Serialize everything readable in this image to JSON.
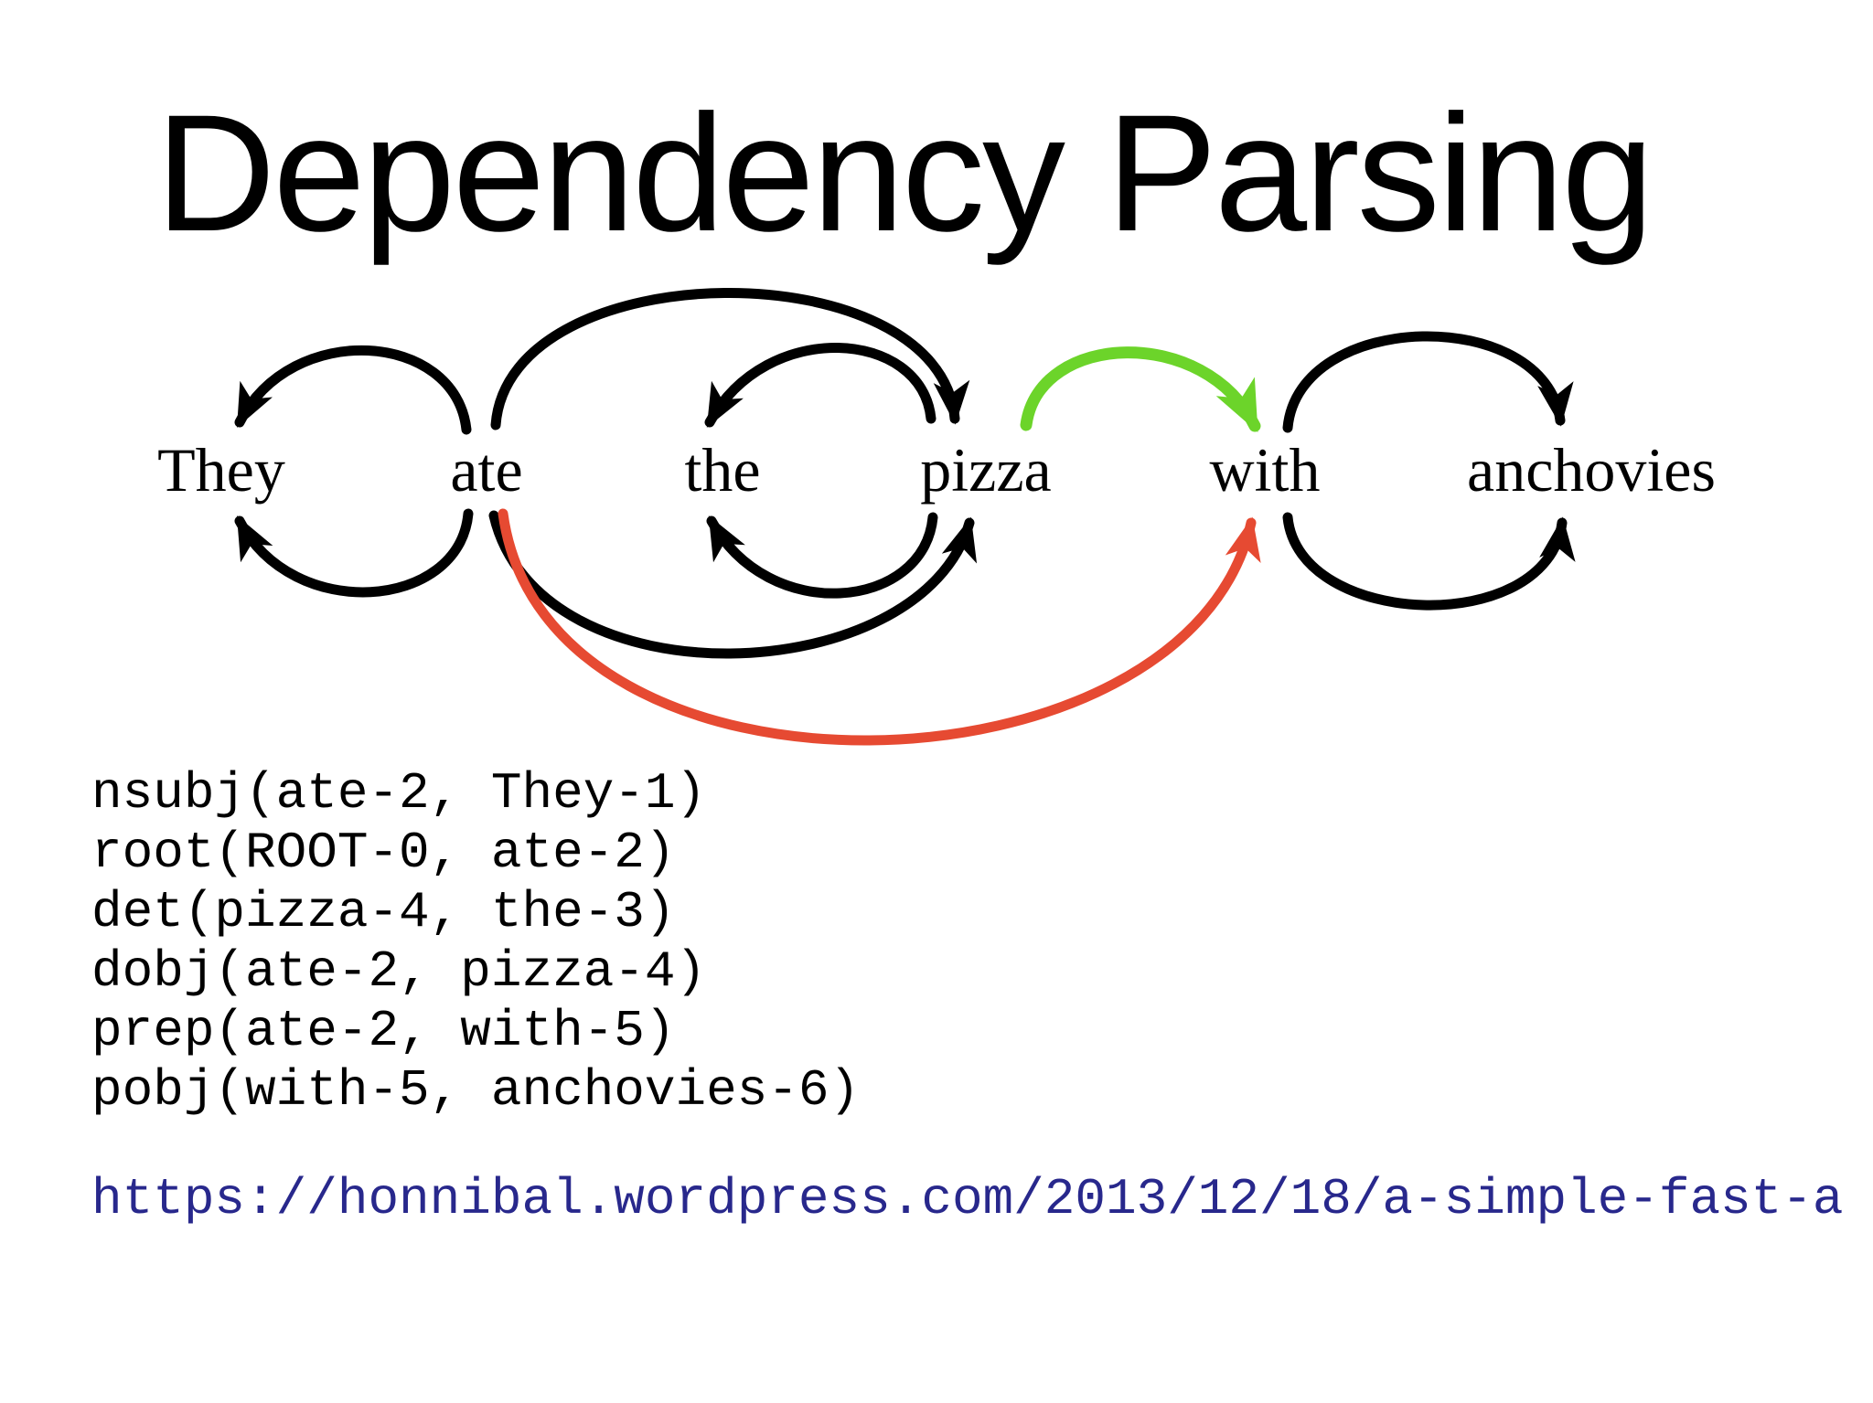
{
  "slide": {
    "title": "Dependency Parsing",
    "background": "#ffffff"
  },
  "sentence": {
    "words": [
      "They",
      "ate",
      "the",
      "pizza",
      "with",
      "anchovies"
    ]
  },
  "diagram": {
    "arc_colors": {
      "default": "#000000",
      "noun_attachment": "#6cd42a",
      "verb_attachment": "#e64a32"
    },
    "arcs": [
      {
        "from": "ate",
        "to": "They",
        "side": "top",
        "color": "#000000"
      },
      {
        "from": "ate",
        "to": "pizza",
        "side": "top",
        "color": "#000000"
      },
      {
        "from": "pizza",
        "to": "the",
        "side": "top",
        "color": "#000000"
      },
      {
        "from": "pizza",
        "to": "with",
        "side": "top",
        "color": "#6cd42a"
      },
      {
        "from": "with",
        "to": "anchovies",
        "side": "top",
        "color": "#000000"
      },
      {
        "from": "ate",
        "to": "They",
        "side": "bottom",
        "color": "#000000"
      },
      {
        "from": "pizza",
        "to": "the",
        "side": "bottom",
        "color": "#000000"
      },
      {
        "from": "ate",
        "to": "pizza",
        "side": "bottom",
        "color": "#000000"
      },
      {
        "from": "ate",
        "to": "with",
        "side": "bottom",
        "color": "#e64a32"
      },
      {
        "from": "with",
        "to": "anchovies",
        "side": "bottom",
        "color": "#000000"
      }
    ]
  },
  "parse": {
    "dependencies": [
      "nsubj(ate-2, They-1)",
      "root(ROOT-0, ate-2)",
      "det(pizza-4, the-3)",
      "dobj(ate-2, pizza-4)",
      "prep(ate-2, with-5)",
      "pobj(with-5, anchovies-6)"
    ]
  },
  "link": {
    "url": "https://honnibal.wordpress.com/2013/12/18/a-simple-fast-a",
    "color": "#28288c"
  }
}
